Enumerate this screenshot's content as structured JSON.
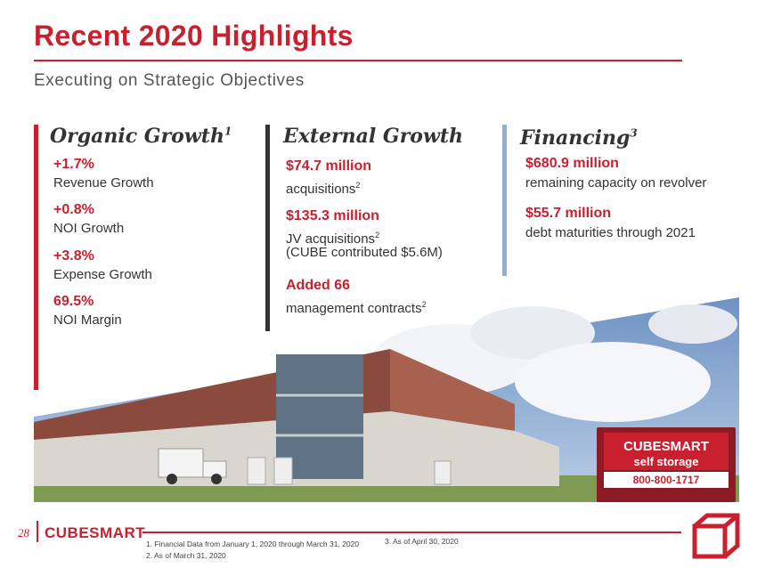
{
  "header": {
    "title": "Recent 2020 Highlights",
    "subtitle": "Executing on Strategic Objectives"
  },
  "colors": {
    "brand_red": "#c8202f",
    "bar_gray": "#333333",
    "bar_blue": "#9aaecb"
  },
  "columns": [
    {
      "heading": "Organic Growth",
      "heading_sup": "1",
      "metrics": [
        {
          "value": "+1.7%",
          "label": "Revenue Growth"
        },
        {
          "value": "+0.8%",
          "label": "NOI Growth"
        },
        {
          "value": "+3.8%",
          "label": "Expense Growth"
        },
        {
          "value": "69.5%",
          "label": "NOI Margin"
        }
      ]
    },
    {
      "heading": "External Growth",
      "metrics": [
        {
          "value": "$74.7 million",
          "label": "acquisitions",
          "label_sup": "2"
        },
        {
          "value": "$135.3 million",
          "label": "JV acquisitions",
          "label_sup": "2",
          "label2": "(CUBE contributed $5.6M)"
        },
        {
          "value": "Added 66",
          "label": "management contracts",
          "label_sup": "2"
        }
      ]
    },
    {
      "heading": "Financing",
      "heading_sup": "3",
      "metrics": [
        {
          "value": "$680.9 million",
          "label": "remaining capacity on revolver"
        },
        {
          "value": "$55.7 million",
          "label": "debt maturities through 2021"
        }
      ]
    }
  ],
  "photo": {
    "sign_brand": "CUBESMART",
    "sign_sub": "self storage",
    "sign_phone": "800-800-1717"
  },
  "footer": {
    "page_number": "28",
    "logo_text": "CUBESMART",
    "footnotes": [
      "1.   Financial Data from January 1, 2020  through March 31, 2020",
      "2.   As of March 31, 2020",
      "3.   As of April 30, 2020"
    ]
  }
}
